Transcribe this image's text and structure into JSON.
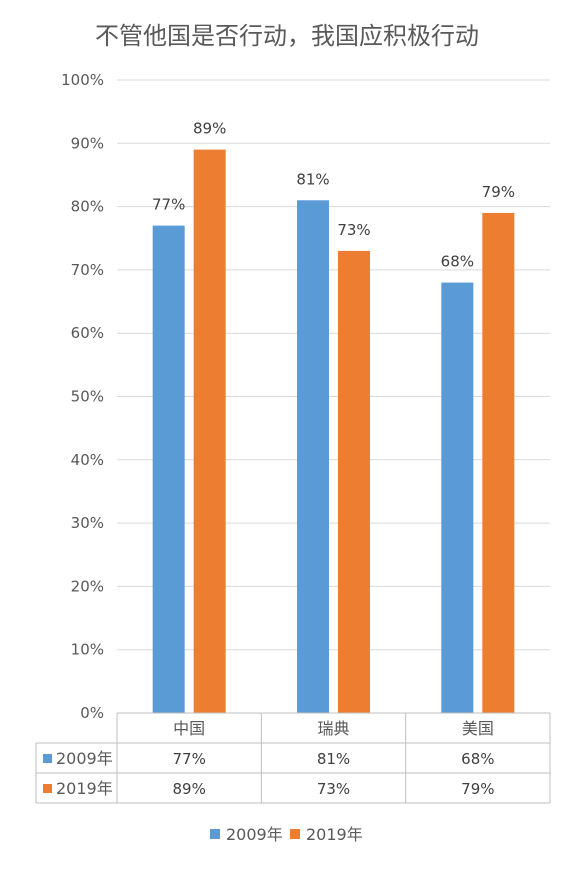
{
  "chart_data": {
    "type": "bar",
    "title": "不管他国是否行动，我国应积极行动",
    "categories": [
      "中国",
      "瑞典",
      "美国"
    ],
    "series": [
      {
        "name": "2009年",
        "values": [
          77,
          81,
          68
        ],
        "color": "#5b9bd5"
      },
      {
        "name": "2019年",
        "values": [
          89,
          73,
          79
        ],
        "color": "#ed7d31"
      }
    ],
    "data_labels": [
      [
        "77%",
        "81%",
        "68%"
      ],
      [
        "89%",
        "73%",
        "79%"
      ]
    ],
    "ylim": [
      0,
      100
    ],
    "yticks": [
      "0%",
      "10%",
      "20%",
      "30%",
      "40%",
      "50%",
      "60%",
      "70%",
      "80%",
      "90%",
      "100%"
    ],
    "grid": true,
    "legend_position": "bottom",
    "data_table": true,
    "unit": "%"
  },
  "colors": {
    "grid": "#d9d9d9",
    "text": "#595959",
    "table_border": "#bfbfbf"
  }
}
